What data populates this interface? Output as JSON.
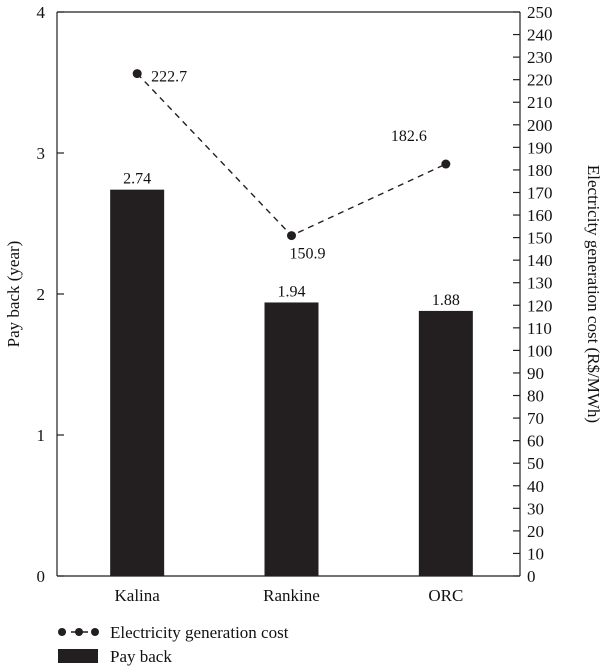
{
  "chart_data": {
    "type": "bar",
    "categories": [
      "Kalina",
      "Rankine",
      "ORC"
    ],
    "title": "",
    "xlabel": "",
    "grid": false,
    "legend_placement": "bottom",
    "series": [
      {
        "name": "Pay back",
        "kind": "bar",
        "axis": "left",
        "values": [
          2.74,
          1.94,
          1.88
        ],
        "labels": [
          "2.74",
          "1.94",
          "1.88"
        ],
        "color": "#231f20"
      },
      {
        "name": "Electricity generation cost",
        "kind": "line",
        "style": "dashed-with-circle-markers",
        "axis": "right",
        "values": [
          222.7,
          150.9,
          182.6
        ],
        "labels": [
          "222.7",
          "150.9",
          "182.6"
        ],
        "color": "#231f20"
      }
    ],
    "y_left": {
      "label": "Pay back (year)",
      "ylim": [
        0,
        4
      ],
      "ticks": [
        "0",
        "1",
        "2",
        "3",
        "4"
      ]
    },
    "y_right": {
      "label": "Electricity generation cost (R$/MWh)",
      "ylim": [
        0,
        250
      ],
      "ticks": [
        "0",
        "10",
        "20",
        "30",
        "40",
        "50",
        "60",
        "70",
        "80",
        "90",
        "100",
        "110",
        "120",
        "130",
        "140",
        "150",
        "160",
        "170",
        "180",
        "190",
        "200",
        "210",
        "220",
        "230",
        "240",
        "250"
      ]
    }
  }
}
